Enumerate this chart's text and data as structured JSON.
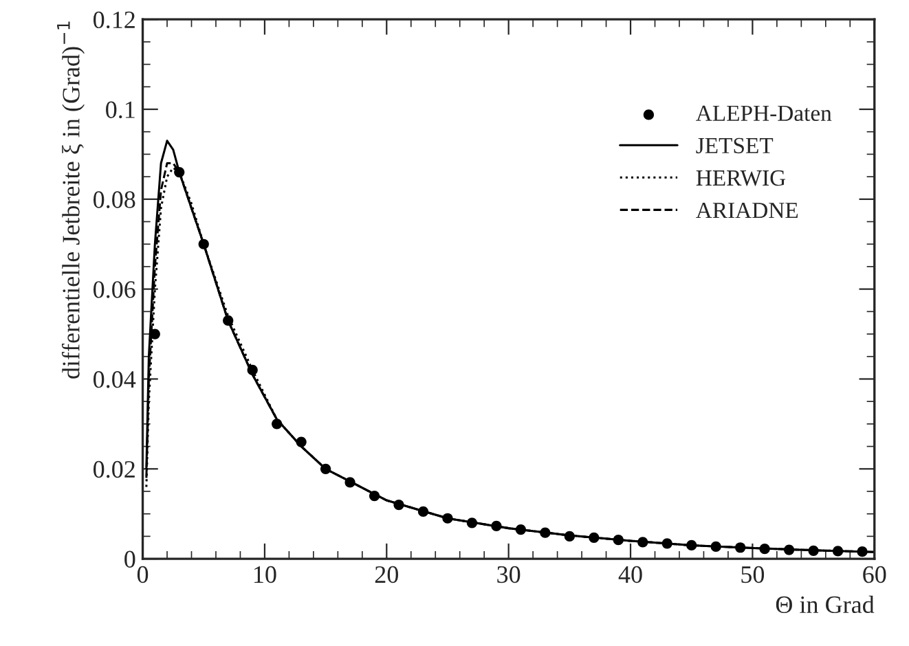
{
  "chart_data": {
    "type": "scatter",
    "xlabel": "Θ in Grad",
    "ylabel": "differentielle Jetbreite ξ in (Grad)$^{−1}$",
    "xlim": [
      0,
      60
    ],
    "ylim": [
      0,
      0.12
    ],
    "xticks": [
      0,
      10,
      20,
      30,
      40,
      50,
      60
    ],
    "yticks": [
      0,
      0.02,
      0.04,
      0.06,
      0.08,
      0.1,
      0.12
    ],
    "legend": "top right",
    "grid": false,
    "series": [
      {
        "name": "ALEPH-Daten",
        "marker": "circle",
        "color": "#000000",
        "x": [
          1,
          3,
          5,
          7,
          9,
          11,
          13,
          15,
          17,
          19,
          21,
          23,
          25,
          27,
          29,
          31,
          33,
          35,
          37,
          39,
          41,
          43,
          45,
          47,
          49,
          51,
          53,
          55,
          57,
          59
        ],
        "values": [
          0.05,
          0.086,
          0.07,
          0.053,
          0.042,
          0.03,
          0.026,
          0.02,
          0.017,
          0.014,
          0.012,
          0.0105,
          0.009,
          0.008,
          0.0073,
          0.0065,
          0.0058,
          0.005,
          0.0047,
          0.0042,
          0.0037,
          0.0034,
          0.003,
          0.0027,
          0.0025,
          0.0022,
          0.002,
          0.0018,
          0.0017,
          0.0016
        ]
      },
      {
        "name": "JETSET",
        "type": "line",
        "line_style": "solid",
        "color": "#000000",
        "x": [
          0.3,
          0.5,
          1,
          1.5,
          2,
          2.5,
          3,
          4,
          5,
          7,
          9,
          11,
          13,
          15,
          20,
          25,
          30,
          35,
          40,
          45,
          50,
          55,
          60
        ],
        "values": [
          0.02,
          0.045,
          0.07,
          0.088,
          0.093,
          0.091,
          0.086,
          0.078,
          0.07,
          0.053,
          0.041,
          0.031,
          0.025,
          0.02,
          0.013,
          0.009,
          0.0068,
          0.0052,
          0.004,
          0.003,
          0.0024,
          0.0019,
          0.0015
        ]
      },
      {
        "name": "HERWIG",
        "type": "line",
        "line_style": "dotted",
        "color": "#000000",
        "x": [
          0.3,
          0.5,
          1,
          1.5,
          2,
          2.5,
          3,
          4,
          5,
          7,
          9,
          11,
          13,
          15,
          20,
          25,
          30,
          35,
          40,
          45,
          50,
          55,
          60
        ],
        "values": [
          0.016,
          0.035,
          0.06,
          0.078,
          0.085,
          0.087,
          0.086,
          0.079,
          0.07,
          0.054,
          0.042,
          0.031,
          0.025,
          0.02,
          0.013,
          0.009,
          0.0068,
          0.0052,
          0.004,
          0.003,
          0.0024,
          0.0019,
          0.0015
        ]
      },
      {
        "name": "ARIADNE",
        "type": "line",
        "line_style": "dashed",
        "color": "#000000",
        "x": [
          0.3,
          0.5,
          1,
          1.5,
          2,
          2.5,
          3,
          4,
          5,
          7,
          9,
          11,
          13,
          15,
          20,
          25,
          30,
          35,
          40,
          45,
          50,
          55,
          60
        ],
        "values": [
          0.018,
          0.04,
          0.065,
          0.082,
          0.088,
          0.088,
          0.086,
          0.078,
          0.07,
          0.053,
          0.041,
          0.031,
          0.025,
          0.02,
          0.013,
          0.009,
          0.0068,
          0.0052,
          0.004,
          0.003,
          0.0024,
          0.0019,
          0.0015
        ]
      }
    ]
  }
}
